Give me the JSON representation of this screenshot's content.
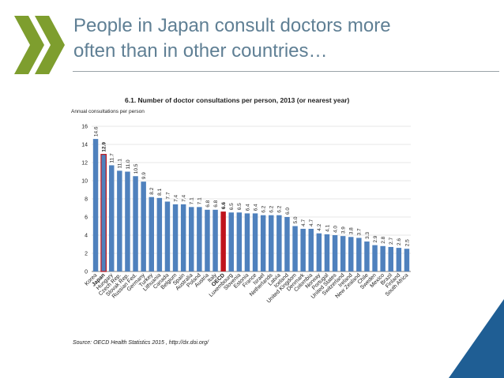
{
  "slide": {
    "title_line1": "People in Japan consult doctors more",
    "title_line2": "often than in other countries…",
    "logo_icon": "oecd-chevrons-icon",
    "corner_icon": "blue-corner-triangle"
  },
  "colors": {
    "title": "#5f7f94",
    "logo": "#7e9e2e",
    "bar": "#4f81bd",
    "highlight_red": "#c0141c",
    "corner_blue": "#1f5e94"
  },
  "chart_data": {
    "type": "bar",
    "title": "6.1. Number of doctor consultations per person, 2013 (or nearest year)",
    "ylabel": "Annual consultations per person",
    "ylim": [
      0,
      16
    ],
    "yticks": [
      0,
      2,
      4,
      6,
      8,
      10,
      12,
      14,
      16
    ],
    "grid": true,
    "source": "Source: OECD Health Statistics 2015 , http://dx.doi.org/",
    "categories": [
      "Korea",
      "Japan",
      "Hungary",
      "Czech Rep.",
      "Slovak Rep.",
      "Russian Fed.",
      "Germany",
      "Turkey",
      "Lithuania",
      "Canada",
      "Belgium",
      "Spain",
      "Australia",
      "Poland",
      "Austria",
      "Italy",
      "OECD",
      "Luxembourg",
      "Slovenia",
      "Estonia",
      "France",
      "Israel",
      "Netherlands",
      "Latvia",
      "Iceland",
      "United Kingdom",
      "Denmark",
      "Colombia",
      "Norway",
      "Portugal",
      "United States",
      "Switzerland",
      "Ireland",
      "New Zealand",
      "Chile",
      "Sweden",
      "Mexico",
      "Brazil",
      "Finland",
      "South Africa"
    ],
    "values": [
      14.6,
      12.9,
      11.7,
      11.1,
      11.0,
      10.5,
      9.9,
      8.2,
      8.1,
      7.7,
      7.4,
      7.4,
      7.1,
      7.1,
      6.8,
      6.8,
      6.6,
      6.5,
      6.5,
      6.4,
      6.4,
      6.2,
      6.2,
      6.2,
      6.0,
      5.0,
      4.7,
      4.7,
      4.2,
      4.1,
      4.0,
      3.9,
      3.8,
      3.7,
      3.3,
      2.9,
      2.8,
      2.7,
      2.6,
      2.5
    ],
    "value_labels": [
      "14.6",
      "12.9",
      "11.7",
      "11.1",
      "11.0",
      "10.5",
      "9.9",
      "8.2",
      "8.1",
      "7.7",
      "7.4",
      "7.4",
      "7.1",
      "7.1",
      "6.8",
      "6.8",
      "6.6",
      "6.5",
      "6.5",
      "6.4",
      "6.4",
      "6.2",
      "6.2",
      "6.2",
      "6.0",
      "5.0",
      "4.7",
      "4.7",
      "4.2",
      "4.1",
      "4.0",
      "3.9",
      "3.8",
      "3.7",
      "3.3",
      "2.9",
      "2.8",
      "2.7",
      "2.6",
      "2.5"
    ],
    "highlight_outline": [
      "Japan"
    ],
    "highlight_fill": [
      "OECD"
    ]
  }
}
